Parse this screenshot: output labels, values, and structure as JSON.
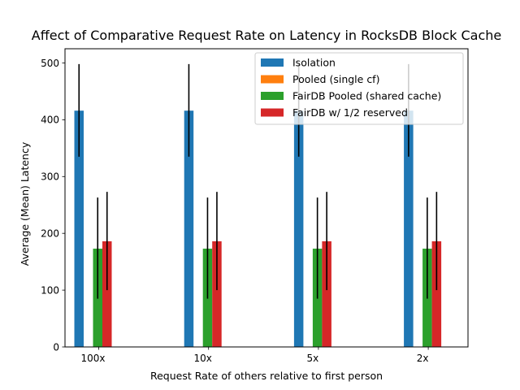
{
  "chart_data": {
    "type": "bar",
    "title": "Affect of Comparative Request Rate on Latency in RocksDB Block Cache",
    "xlabel": "Request Rate of others relative to first person",
    "ylabel": "Average (Mean) Latency",
    "categories": [
      "100x",
      "10x",
      "5x",
      "2x"
    ],
    "ylim": [
      0,
      525
    ],
    "yticks": [
      0,
      100,
      200,
      300,
      400,
      500
    ],
    "grid": false,
    "legend_position": "top-right",
    "series": [
      {
        "name": "Isolation",
        "color": "#1f77b4",
        "values": [
          416,
          416,
          416,
          416
        ],
        "error_low": [
          335,
          335,
          335,
          335
        ],
        "error_high": [
          498,
          498,
          498,
          498
        ]
      },
      {
        "name": "Pooled (single cf)",
        "color": "#ff7f0e",
        "values": [
          0,
          0,
          0,
          0
        ],
        "error_low": null,
        "error_high": null
      },
      {
        "name": "FairDB Pooled (shared cache)",
        "color": "#2ca02c",
        "values": [
          173,
          173,
          173,
          173
        ],
        "error_low": [
          85,
          85,
          85,
          85
        ],
        "error_high": [
          263,
          263,
          263,
          263
        ]
      },
      {
        "name": "FairDB w/ 1/2 reserved",
        "color": "#d62728",
        "values": [
          186,
          186,
          186,
          186
        ],
        "error_low": [
          100,
          100,
          100,
          100
        ],
        "error_high": [
          273,
          273,
          273,
          273
        ]
      }
    ]
  }
}
